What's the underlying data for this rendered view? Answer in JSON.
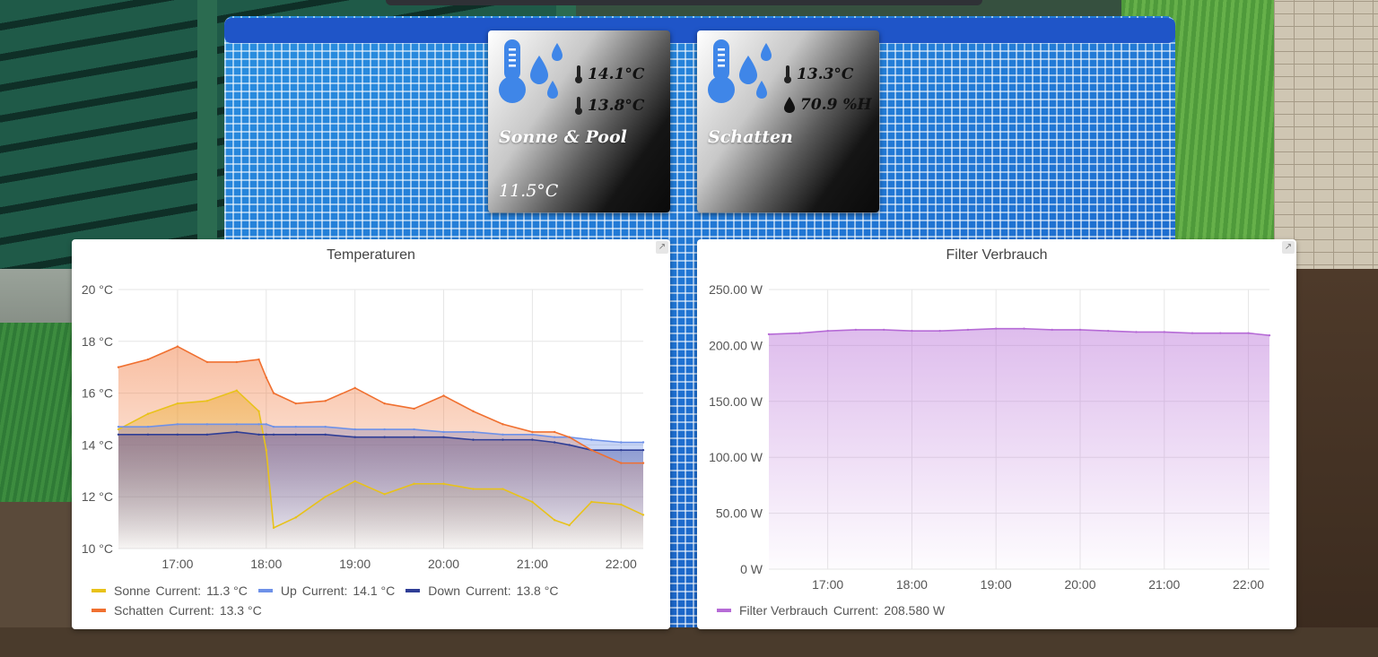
{
  "tiles": [
    {
      "name": "Sonne & Pool",
      "readings": [
        {
          "icon": "thermometer-icon",
          "value": "14.1°C"
        },
        {
          "icon": "thermometer-icon",
          "value": "13.8°C"
        }
      ],
      "bottom_value": "11.5°C"
    },
    {
      "name": "Schatten",
      "readings": [
        {
          "icon": "thermometer-icon",
          "value": "13.3°C"
        },
        {
          "icon": "water-drop-icon",
          "value": "70.9 %H"
        }
      ],
      "bottom_value": ""
    }
  ],
  "colors": {
    "sonne": "#E8C21A",
    "up": "#6E91E8",
    "down": "#2F3E96",
    "schatten": "#F07030",
    "filter": "#B66BD6",
    "tile_icon": "#3F86E8"
  },
  "panels": {
    "temperature": {
      "title": "Temperaturen",
      "legend": [
        {
          "name": "Sonne",
          "current_label": "Current:",
          "current": "11.3 °C",
          "color_key": "sonne"
        },
        {
          "name": "Up",
          "current_label": "Current:",
          "current": "14.1 °C",
          "color_key": "up"
        },
        {
          "name": "Down",
          "current_label": "Current:",
          "current": "13.8 °C",
          "color_key": "down"
        },
        {
          "name": "Schatten",
          "current_label": "Current:",
          "current": "13.3 °C",
          "color_key": "schatten"
        }
      ]
    },
    "filter": {
      "title": "Filter Verbrauch",
      "legend": [
        {
          "name": "Filter Verbrauch",
          "current_label": "Current:",
          "current": "208.580 W",
          "color_key": "filter"
        }
      ]
    }
  },
  "chart_data": [
    {
      "type": "area",
      "title": "Temperaturen",
      "xlabel": "",
      "ylabel": "",
      "x_ticks": [
        "17:00",
        "18:00",
        "19:00",
        "20:00",
        "21:00",
        "22:00"
      ],
      "y_ticks": [
        "10 °C",
        "12 °C",
        "14 °C",
        "16 °C",
        "18 °C",
        "20 °C"
      ],
      "xlim": [
        "16:20",
        "22:15"
      ],
      "ylim": [
        10,
        20
      ],
      "grid": true,
      "legend_position": "bottom",
      "x": [
        "16:20",
        "16:40",
        "17:00",
        "17:20",
        "17:40",
        "17:55",
        "18:00",
        "18:05",
        "18:20",
        "18:40",
        "19:00",
        "19:20",
        "19:40",
        "20:00",
        "20:20",
        "20:40",
        "21:00",
        "21:15",
        "21:25",
        "21:40",
        "22:00",
        "22:15"
      ],
      "series": [
        {
          "name": "Sonne",
          "values": [
            14.6,
            15.2,
            15.6,
            15.7,
            16.1,
            15.3,
            13.8,
            10.8,
            11.2,
            12.0,
            12.6,
            12.1,
            12.5,
            12.5,
            12.3,
            12.3,
            11.8,
            11.1,
            10.9,
            11.8,
            11.7,
            11.3
          ]
        },
        {
          "name": "Up",
          "values": [
            14.7,
            14.7,
            14.8,
            14.8,
            14.8,
            14.8,
            14.8,
            14.7,
            14.7,
            14.7,
            14.6,
            14.6,
            14.6,
            14.5,
            14.5,
            14.4,
            14.4,
            14.3,
            14.3,
            14.2,
            14.1,
            14.1
          ]
        },
        {
          "name": "Down",
          "values": [
            14.4,
            14.4,
            14.4,
            14.4,
            14.5,
            14.4,
            14.4,
            14.4,
            14.4,
            14.4,
            14.3,
            14.3,
            14.3,
            14.3,
            14.2,
            14.2,
            14.2,
            14.1,
            14.0,
            13.8,
            13.8,
            13.8
          ]
        },
        {
          "name": "Schatten",
          "values": [
            17.0,
            17.3,
            17.8,
            17.2,
            17.2,
            17.3,
            16.6,
            16.0,
            15.6,
            15.7,
            16.2,
            15.6,
            15.4,
            15.9,
            15.3,
            14.8,
            14.5,
            14.5,
            14.3,
            13.8,
            13.3,
            13.3
          ]
        }
      ]
    },
    {
      "type": "area",
      "title": "Filter Verbrauch",
      "xlabel": "",
      "ylabel": "",
      "x_ticks": [
        "17:00",
        "18:00",
        "19:00",
        "20:00",
        "21:00",
        "22:00"
      ],
      "y_ticks": [
        "0 W",
        "50.00 W",
        "100.00 W",
        "150.00 W",
        "200.00 W",
        "250.00 W"
      ],
      "xlim": [
        "16:18",
        "22:15"
      ],
      "ylim": [
        0,
        250
      ],
      "grid": true,
      "legend_position": "bottom",
      "x": [
        "16:18",
        "16:40",
        "17:00",
        "17:20",
        "17:40",
        "18:00",
        "18:20",
        "18:40",
        "19:00",
        "19:20",
        "19:40",
        "20:00",
        "20:20",
        "20:40",
        "21:00",
        "21:20",
        "21:40",
        "22:00",
        "22:15"
      ],
      "series": [
        {
          "name": "Filter Verbrauch",
          "values": [
            210,
            211,
            213,
            214,
            214,
            213,
            213,
            214,
            215,
            215,
            214,
            214,
            213,
            212,
            212,
            211,
            211,
            211,
            209
          ]
        }
      ]
    }
  ]
}
